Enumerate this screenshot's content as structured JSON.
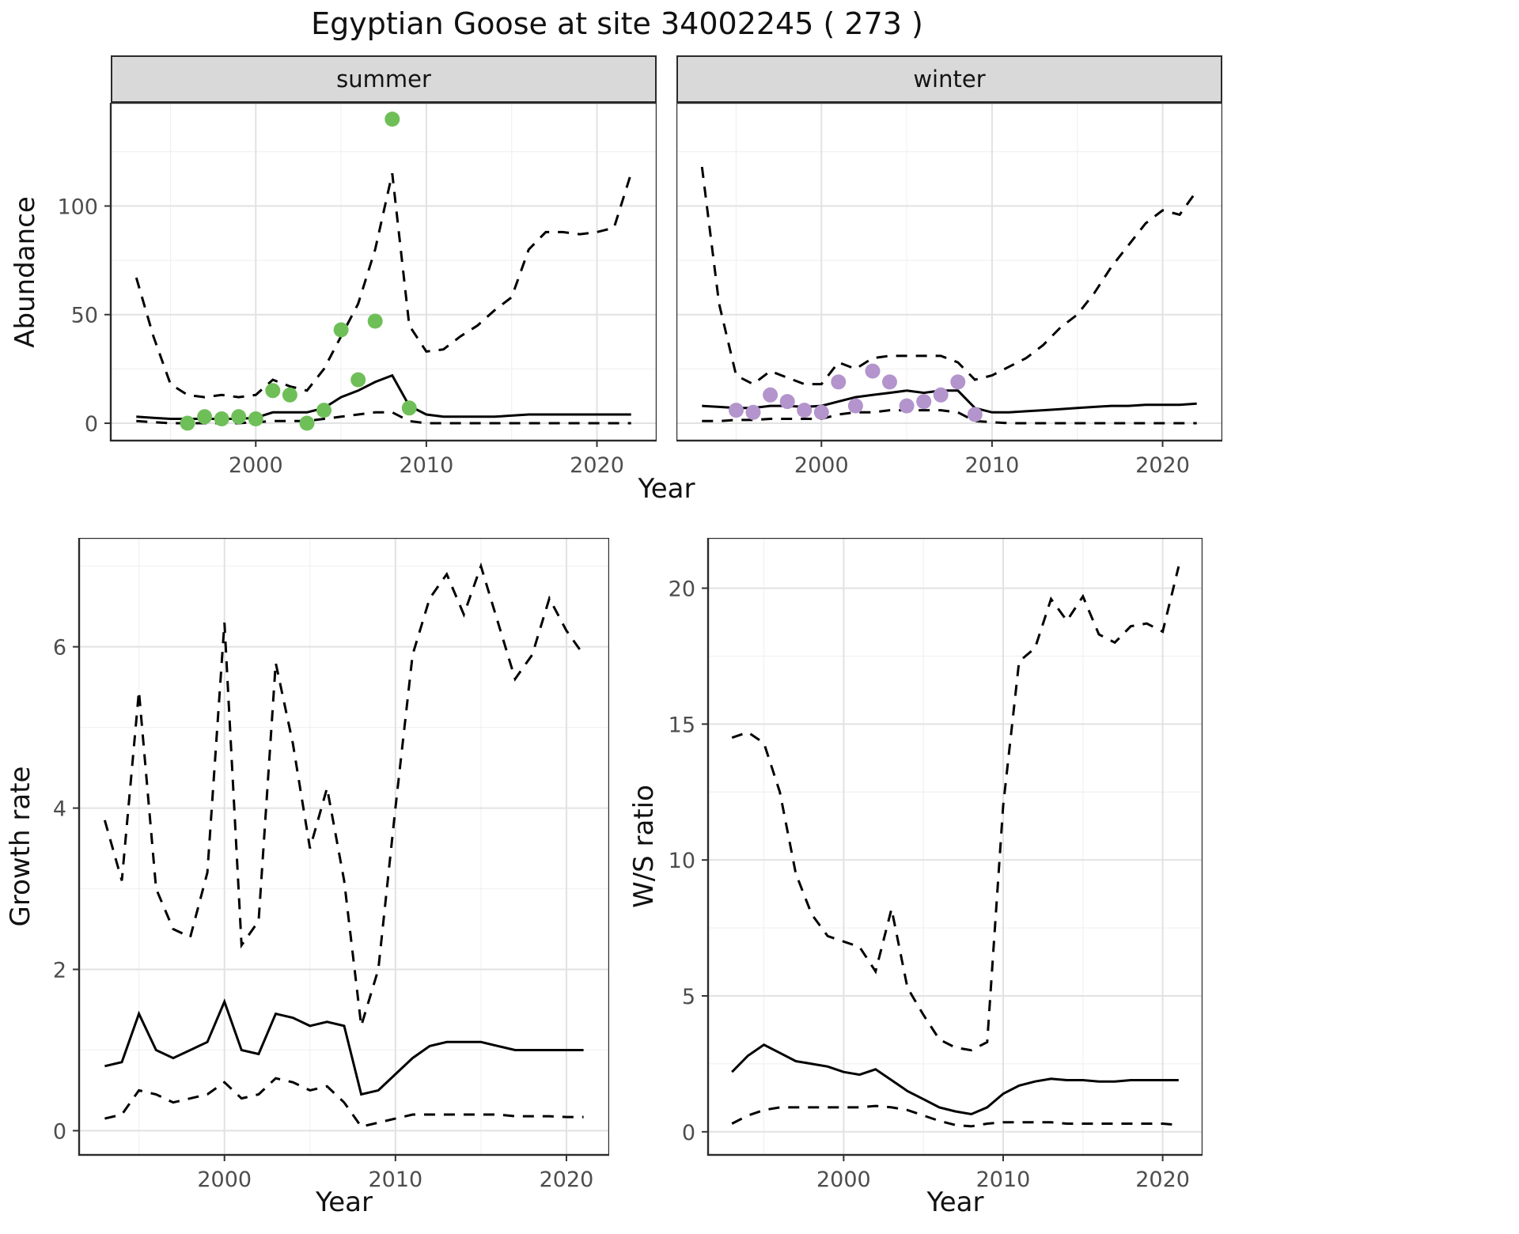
{
  "title": "Egyptian Goose at site 34002245 ( 273 )",
  "colors": {
    "summer_points": "#6fbf58",
    "winter_points": "#b394cc",
    "line": "#000000",
    "strip_bg": "#d9d9d9",
    "panel_border": "#2b2b2b",
    "axis_text": "#4d4d4d"
  },
  "top_row": {
    "ylabel": "Abundance",
    "xlabel": "Year",
    "facets": [
      "summer",
      "winter"
    ]
  },
  "bottom_row": {
    "left": {
      "ylabel": "Growth rate",
      "xlabel": "Year"
    },
    "right": {
      "ylabel": "W/S ratio",
      "xlabel": "Year"
    }
  },
  "chart_data": [
    {
      "id": "abundance-summer",
      "type": "line",
      "facet": "summer",
      "xlabel": "Year",
      "ylabel": "Abundance",
      "xlim": [
        1991.5,
        2023.5
      ],
      "ylim": [
        -8,
        147.5
      ],
      "xticks": [
        2000,
        2010,
        2020
      ],
      "yticks": [
        0,
        50,
        100
      ],
      "grid": true,
      "legend": "none",
      "x": [
        1993,
        1994,
        1995,
        1996,
        1997,
        1998,
        1999,
        2000,
        2001,
        2002,
        2003,
        2004,
        2005,
        2006,
        2007,
        2008,
        2009,
        2010,
        2011,
        2012,
        2013,
        2014,
        2015,
        2016,
        2017,
        2018,
        2019,
        2020,
        2021,
        2022
      ],
      "series": [
        {
          "name": "fitted",
          "style": "solid",
          "values": [
            3,
            2.5,
            2,
            2,
            2,
            2,
            2,
            2.5,
            5,
            5,
            5,
            7,
            12,
            15,
            19,
            22,
            8,
            4,
            3,
            3,
            3,
            3,
            3.5,
            4,
            4,
            4,
            4,
            4,
            4,
            4
          ]
        },
        {
          "name": "upper-ci",
          "style": "dashed",
          "values": [
            67,
            40,
            18,
            13,
            12,
            13,
            12,
            13,
            20,
            17,
            15,
            25,
            40,
            55,
            80,
            115,
            45,
            33,
            34,
            40,
            45,
            52,
            58,
            80,
            88,
            88,
            87,
            88,
            90,
            115
          ]
        },
        {
          "name": "lower-ci",
          "style": "dashed",
          "values": [
            1,
            0.5,
            0,
            0,
            0,
            0,
            0,
            0.5,
            1,
            1,
            1,
            2,
            3,
            4,
            5,
            5,
            1,
            0,
            0,
            0,
            0,
            0,
            0,
            0,
            0,
            0,
            0,
            0,
            0,
            0
          ]
        }
      ],
      "points": {
        "name": "observed-summer",
        "color": "#6fbf58",
        "x": [
          1996,
          1997,
          1998,
          1999,
          2000,
          2001,
          2002,
          2003,
          2004,
          2005,
          2006,
          2007,
          2008,
          2009
        ],
        "y": [
          0,
          3,
          2,
          3,
          2,
          15,
          13,
          0,
          6,
          43,
          20,
          47,
          140,
          7
        ]
      }
    },
    {
      "id": "abundance-winter",
      "type": "line",
      "facet": "winter",
      "xlabel": "Year",
      "ylabel": "Abundance",
      "xlim": [
        1991.5,
        2023.5
      ],
      "ylim": [
        -8,
        147.5
      ],
      "xticks": [
        2000,
        2010,
        2020
      ],
      "yticks": [
        0,
        50,
        100
      ],
      "grid": true,
      "legend": "none",
      "x": [
        1993,
        1994,
        1995,
        1996,
        1997,
        1998,
        1999,
        2000,
        2001,
        2002,
        2003,
        2004,
        2005,
        2006,
        2007,
        2008,
        2009,
        2010,
        2011,
        2012,
        2013,
        2014,
        2015,
        2016,
        2017,
        2018,
        2019,
        2020,
        2021,
        2022
      ],
      "series": [
        {
          "name": "fitted",
          "style": "solid",
          "values": [
            8,
            7.5,
            7,
            7,
            8,
            8,
            7.5,
            8,
            10,
            12,
            13,
            14,
            15,
            14,
            15,
            15,
            7,
            5,
            5,
            5.5,
            6,
            6.5,
            7,
            7.5,
            8,
            8,
            8.5,
            8.5,
            8.5,
            9
          ]
        },
        {
          "name": "upper-ci",
          "style": "dashed",
          "values": [
            118,
            55,
            22,
            18,
            24,
            21,
            18,
            18,
            28,
            25,
            30,
            31,
            31,
            31,
            31,
            28,
            20,
            22,
            26,
            30,
            36,
            44,
            50,
            60,
            72,
            82,
            92,
            98,
            96,
            107
          ]
        },
        {
          "name": "lower-ci",
          "style": "dashed",
          "values": [
            1,
            1,
            1.5,
            1.5,
            2,
            2,
            2,
            2,
            4,
            5,
            5,
            6,
            6,
            6,
            6,
            5,
            1,
            0.5,
            0,
            0,
            0,
            0,
            0,
            0,
            0,
            0,
            0,
            0,
            0,
            0
          ]
        }
      ],
      "points": {
        "name": "observed-winter",
        "color": "#b394cc",
        "x": [
          1995,
          1996,
          1997,
          1998,
          1999,
          2000,
          2001,
          2002,
          2003,
          2004,
          2005,
          2006,
          2007,
          2008,
          2009
        ],
        "y": [
          6,
          5,
          13,
          10,
          6,
          5,
          19,
          8,
          24,
          19,
          8,
          10,
          13,
          19,
          4
        ]
      }
    },
    {
      "id": "growth-rate",
      "type": "line",
      "xlabel": "Year",
      "ylabel": "Growth rate",
      "xlim": [
        1991.5,
        2022.5
      ],
      "ylim": [
        -0.3,
        7.35
      ],
      "xticks": [
        2000,
        2010,
        2020
      ],
      "yticks": [
        0,
        2,
        4,
        6
      ],
      "grid": true,
      "legend": "none",
      "x": [
        1993,
        1994,
        1995,
        1996,
        1997,
        1998,
        1999,
        2000,
        2001,
        2002,
        2003,
        2004,
        2005,
        2006,
        2007,
        2008,
        2009,
        2010,
        2011,
        2012,
        2013,
        2014,
        2015,
        2016,
        2017,
        2018,
        2019,
        2020,
        2021
      ],
      "series": [
        {
          "name": "fitted",
          "style": "solid",
          "values": [
            0.8,
            0.85,
            1.45,
            1,
            0.9,
            1,
            1.1,
            1.6,
            1,
            0.95,
            1.45,
            1.4,
            1.3,
            1.35,
            1.3,
            0.45,
            0.5,
            0.7,
            0.9,
            1.05,
            1.1,
            1.1,
            1.1,
            1.05,
            1,
            1,
            1,
            1,
            1
          ]
        },
        {
          "name": "upper-ci",
          "style": "dashed",
          "values": [
            3.85,
            3.1,
            5.45,
            3,
            2.5,
            2.4,
            3.2,
            6.3,
            2.3,
            2.6,
            5.8,
            4.8,
            3.5,
            4.25,
            3.1,
            1.3,
            2,
            4,
            5.9,
            6.6,
            6.9,
            6.4,
            7,
            6.3,
            5.6,
            5.9,
            6.6,
            6.2,
            5.9
          ]
        },
        {
          "name": "lower-ci",
          "style": "dashed",
          "values": [
            0.15,
            0.2,
            0.5,
            0.45,
            0.35,
            0.4,
            0.45,
            0.6,
            0.4,
            0.45,
            0.65,
            0.6,
            0.5,
            0.55,
            0.35,
            0.05,
            0.1,
            0.15,
            0.2,
            0.2,
            0.2,
            0.2,
            0.2,
            0.2,
            0.18,
            0.18,
            0.18,
            0.17,
            0.17
          ]
        }
      ]
    },
    {
      "id": "ws-ratio",
      "type": "line",
      "xlabel": "Year",
      "ylabel": "W/S ratio",
      "xlim": [
        1991.5,
        2022.5
      ],
      "ylim": [
        -0.85,
        21.85
      ],
      "xticks": [
        2000,
        2010,
        2020
      ],
      "yticks": [
        0,
        5,
        10,
        15,
        20
      ],
      "grid": true,
      "legend": "none",
      "x": [
        1993,
        1994,
        1995,
        1996,
        1997,
        1998,
        1999,
        2000,
        2001,
        2002,
        2003,
        2004,
        2005,
        2006,
        2007,
        2008,
        2009,
        2010,
        2011,
        2012,
        2013,
        2014,
        2015,
        2016,
        2017,
        2018,
        2019,
        2020,
        2021
      ],
      "series": [
        {
          "name": "fitted",
          "style": "solid",
          "values": [
            2.2,
            2.8,
            3.2,
            2.9,
            2.6,
            2.5,
            2.4,
            2.2,
            2.1,
            2.3,
            1.9,
            1.5,
            1.2,
            0.9,
            0.75,
            0.65,
            0.9,
            1.4,
            1.7,
            1.85,
            1.95,
            1.9,
            1.9,
            1.85,
            1.85,
            1.9,
            1.9,
            1.9,
            1.9
          ]
        },
        {
          "name": "upper-ci",
          "style": "dashed",
          "values": [
            14.5,
            14.7,
            14.3,
            12.5,
            9.5,
            8,
            7.2,
            7,
            6.8,
            5.9,
            8.2,
            5.3,
            4.3,
            3.4,
            3.1,
            3,
            3.3,
            12,
            17.3,
            17.8,
            19.6,
            18.8,
            19.7,
            18.3,
            18,
            18.6,
            18.7,
            18.4,
            20.8
          ]
        },
        {
          "name": "lower-ci",
          "style": "dashed",
          "values": [
            0.3,
            0.6,
            0.8,
            0.9,
            0.9,
            0.9,
            0.9,
            0.9,
            0.9,
            0.95,
            0.9,
            0.8,
            0.6,
            0.4,
            0.25,
            0.2,
            0.3,
            0.35,
            0.35,
            0.35,
            0.35,
            0.3,
            0.3,
            0.3,
            0.3,
            0.3,
            0.3,
            0.3,
            0.25
          ]
        }
      ]
    }
  ]
}
